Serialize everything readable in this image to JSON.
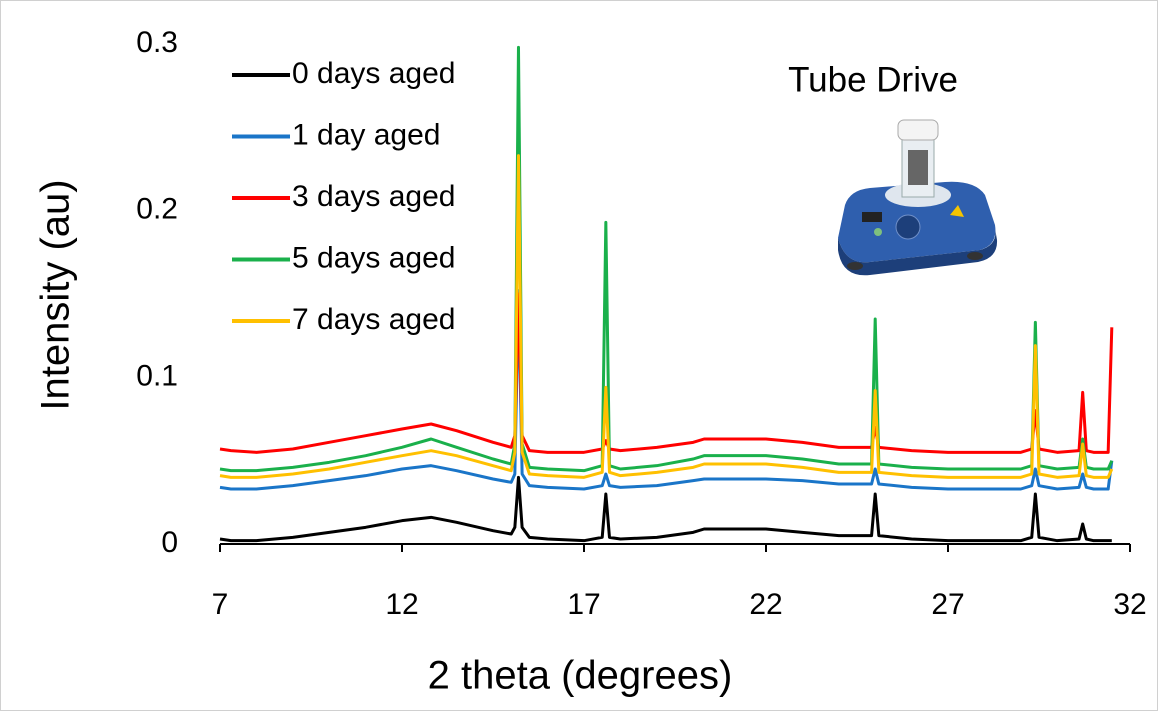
{
  "chart_data": {
    "type": "line",
    "annotation": "Tube Drive",
    "x_label": "2 theta (degrees)",
    "y_label": "Intensity (au)",
    "x": [
      7,
      7.3,
      8,
      9,
      10,
      11,
      12,
      12.8,
      13.5,
      14.5,
      15,
      15.1,
      15.2,
      15.3,
      15.5,
      16,
      17,
      17.5,
      17.6,
      17.7,
      18,
      19,
      20,
      20.3,
      21,
      22,
      23,
      24,
      24.9,
      25,
      25.1,
      26,
      27,
      28,
      29,
      29.3,
      29.4,
      29.5,
      30,
      30.6,
      30.7,
      30.8,
      31,
      31.4,
      31.5
    ],
    "series": [
      {
        "name": "0 days aged",
        "color": "#000000",
        "values": [
          0.003,
          0.002,
          0.002,
          0.004,
          0.007,
          0.01,
          0.014,
          0.016,
          0.013,
          0.008,
          0.006,
          0.01,
          0.04,
          0.01,
          0.004,
          0.003,
          0.002,
          0.004,
          0.03,
          0.004,
          0.003,
          0.004,
          0.007,
          0.009,
          0.009,
          0.009,
          0.007,
          0.005,
          0.005,
          0.03,
          0.005,
          0.003,
          0.002,
          0.002,
          0.002,
          0.004,
          0.03,
          0.004,
          0.002,
          0.003,
          0.012,
          0.003,
          0.002,
          0.002,
          0.002
        ]
      },
      {
        "name": "1 day aged",
        "color": "#1a75c8",
        "values": [
          0.034,
          0.033,
          0.033,
          0.035,
          0.038,
          0.041,
          0.045,
          0.047,
          0.044,
          0.039,
          0.037,
          0.042,
          0.152,
          0.042,
          0.035,
          0.034,
          0.033,
          0.035,
          0.042,
          0.035,
          0.034,
          0.035,
          0.038,
          0.039,
          0.039,
          0.039,
          0.038,
          0.036,
          0.036,
          0.045,
          0.036,
          0.034,
          0.033,
          0.033,
          0.033,
          0.035,
          0.045,
          0.035,
          0.033,
          0.034,
          0.042,
          0.034,
          0.033,
          0.033,
          0.05
        ]
      },
      {
        "name": "3 days aged",
        "color": "#ff0000",
        "values": [
          0.057,
          0.056,
          0.055,
          0.057,
          0.061,
          0.065,
          0.069,
          0.072,
          0.068,
          0.061,
          0.058,
          0.065,
          0.15,
          0.065,
          0.056,
          0.055,
          0.055,
          0.057,
          0.062,
          0.057,
          0.056,
          0.058,
          0.061,
          0.063,
          0.063,
          0.063,
          0.061,
          0.058,
          0.058,
          0.07,
          0.058,
          0.056,
          0.055,
          0.055,
          0.055,
          0.057,
          0.08,
          0.057,
          0.055,
          0.056,
          0.091,
          0.056,
          0.055,
          0.055,
          0.13
        ]
      },
      {
        "name": "5 days aged",
        "color": "#1ab04b",
        "values": [
          0.045,
          0.044,
          0.044,
          0.046,
          0.049,
          0.053,
          0.058,
          0.063,
          0.058,
          0.051,
          0.048,
          0.06,
          0.298,
          0.06,
          0.046,
          0.045,
          0.044,
          0.047,
          0.193,
          0.047,
          0.045,
          0.047,
          0.051,
          0.053,
          0.053,
          0.053,
          0.051,
          0.048,
          0.048,
          0.135,
          0.048,
          0.046,
          0.045,
          0.045,
          0.045,
          0.047,
          0.133,
          0.047,
          0.045,
          0.046,
          0.063,
          0.046,
          0.045,
          0.045,
          0.05
        ]
      },
      {
        "name": "7 days aged",
        "color": "#ffc000",
        "values": [
          0.041,
          0.04,
          0.04,
          0.042,
          0.045,
          0.049,
          0.053,
          0.056,
          0.053,
          0.047,
          0.044,
          0.055,
          0.233,
          0.055,
          0.042,
          0.041,
          0.04,
          0.043,
          0.094,
          0.043,
          0.041,
          0.043,
          0.046,
          0.048,
          0.048,
          0.048,
          0.046,
          0.043,
          0.043,
          0.092,
          0.043,
          0.041,
          0.04,
          0.04,
          0.04,
          0.042,
          0.119,
          0.042,
          0.04,
          0.041,
          0.06,
          0.041,
          0.04,
          0.04,
          0.045
        ]
      }
    ],
    "xlim": [
      7,
      32
    ],
    "xticks": [
      7,
      12,
      17,
      22,
      27,
      32
    ],
    "ylim": [
      0,
      0.3
    ],
    "yticks": [
      0,
      0.1,
      0.2,
      0.3
    ],
    "grid": false,
    "legend": "upper left"
  }
}
